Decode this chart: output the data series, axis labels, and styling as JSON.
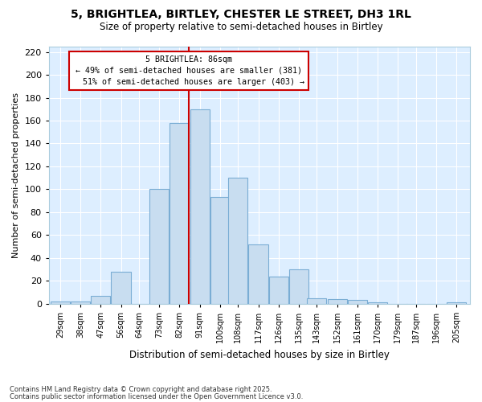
{
  "title1": "5, BRIGHTLEA, BIRTLEY, CHESTER LE STREET, DH3 1RL",
  "title2": "Size of property relative to semi-detached houses in Birtley",
  "xlabel": "Distribution of semi-detached houses by size in Birtley",
  "ylabel": "Number of semi-detached properties",
  "bin_centers": [
    29,
    38,
    47,
    56,
    64,
    73,
    82,
    91,
    100,
    108,
    117,
    126,
    135,
    143,
    152,
    161,
    170,
    179,
    187,
    196,
    205
  ],
  "bin_labels": [
    "29sqm",
    "38sqm",
    "47sqm",
    "56sqm",
    "64sqm",
    "73sqm",
    "82sqm",
    "91sqm",
    "100sqm",
    "108sqm",
    "117sqm",
    "126sqm",
    "135sqm",
    "143sqm",
    "152sqm",
    "161sqm",
    "170sqm",
    "179sqm",
    "187sqm",
    "196sqm",
    "205sqm"
  ],
  "values": [
    2,
    2,
    7,
    28,
    0,
    100,
    158,
    170,
    93,
    110,
    52,
    24,
    30,
    5,
    4,
    3,
    1,
    0,
    0,
    0,
    1
  ],
  "bar_face_color": "#c8ddf0",
  "bar_edge_color": "#7aadd4",
  "property_value": 86,
  "property_label": "5 BRIGHTLEA: 86sqm",
  "pct_smaller": 49,
  "n_smaller": 381,
  "pct_larger": 51,
  "n_larger": 403,
  "vline_color": "#cc0000",
  "ann_box_edge": "#cc0000",
  "ann_box_face": "#ffffff",
  "ylim": [
    0,
    225
  ],
  "yticks": [
    0,
    20,
    40,
    60,
    80,
    100,
    120,
    140,
    160,
    180,
    200,
    220
  ],
  "fig_bg": "#ffffff",
  "plot_bg": "#ddeeff",
  "grid_color": "#ffffff",
  "footer1": "Contains HM Land Registry data © Crown copyright and database right 2025.",
  "footer2": "Contains public sector information licensed under the Open Government Licence v3.0."
}
